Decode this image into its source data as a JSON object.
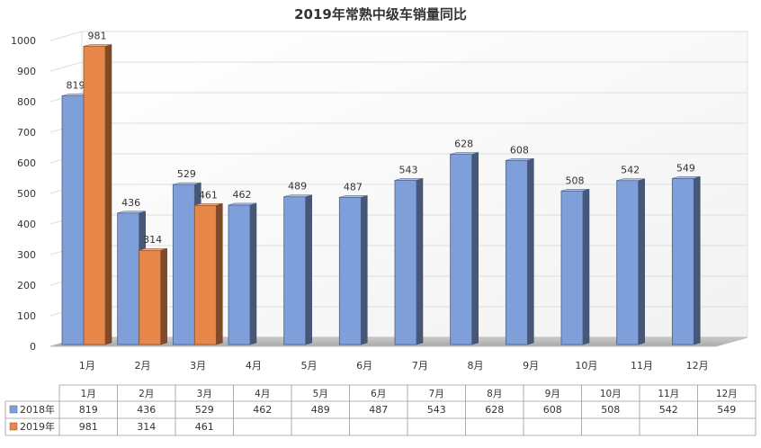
{
  "chart_data": {
    "type": "bar",
    "title": "2019年常熟中级车销量同比",
    "categories": [
      "1月",
      "2月",
      "3月",
      "4月",
      "5月",
      "6月",
      "7月",
      "8月",
      "9月",
      "10月",
      "11月",
      "12月"
    ],
    "series": [
      {
        "name": "2018年",
        "color": "#7f9fdb",
        "values": [
          819,
          436,
          529,
          462,
          489,
          487,
          543,
          628,
          608,
          508,
          542,
          549
        ]
      },
      {
        "name": "2019年",
        "color": "#e8874a",
        "values": [
          981,
          314,
          461,
          null,
          null,
          null,
          null,
          null,
          null,
          null,
          null,
          null
        ]
      }
    ],
    "ylim": [
      0,
      1000
    ],
    "yticks": [
      0,
      100,
      200,
      300,
      400,
      500,
      600,
      700,
      800,
      900,
      1000
    ],
    "grid": true,
    "legend": "data-table",
    "three_d": true
  }
}
